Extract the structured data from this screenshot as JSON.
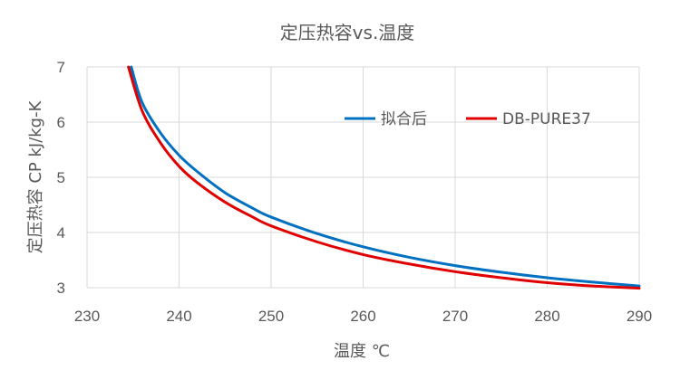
{
  "chart_data": {
    "type": "line",
    "title": "定压热容vs.温度",
    "xlabel": "温度 ℃",
    "ylabel": "定压热容 CP kJ/kg-K",
    "xlim": [
      230,
      290
    ],
    "ylim": [
      3,
      7
    ],
    "xticks": [
      230,
      240,
      250,
      260,
      270,
      280,
      290
    ],
    "yticks": [
      3,
      4,
      5,
      6,
      7
    ],
    "grid": true,
    "legend_position": "top-right",
    "series": [
      {
        "name": "拟合后",
        "color": "#0070c0",
        "x": [
          234.8,
          236,
          238,
          240,
          242,
          245,
          248,
          250,
          255,
          260,
          265,
          270,
          275,
          280,
          285,
          290
        ],
        "y": [
          7.0,
          6.35,
          5.8,
          5.4,
          5.1,
          4.72,
          4.44,
          4.28,
          3.98,
          3.74,
          3.55,
          3.4,
          3.28,
          3.18,
          3.1,
          3.03
        ]
      },
      {
        "name": "DB-PURE37",
        "color": "#e00000",
        "x": [
          234.5,
          236,
          238,
          240,
          242,
          245,
          248,
          250,
          255,
          260,
          265,
          270,
          275,
          280,
          285,
          290
        ],
        "y": [
          7.0,
          6.2,
          5.62,
          5.2,
          4.9,
          4.55,
          4.28,
          4.12,
          3.83,
          3.6,
          3.43,
          3.29,
          3.18,
          3.09,
          3.03,
          2.99
        ]
      }
    ]
  }
}
